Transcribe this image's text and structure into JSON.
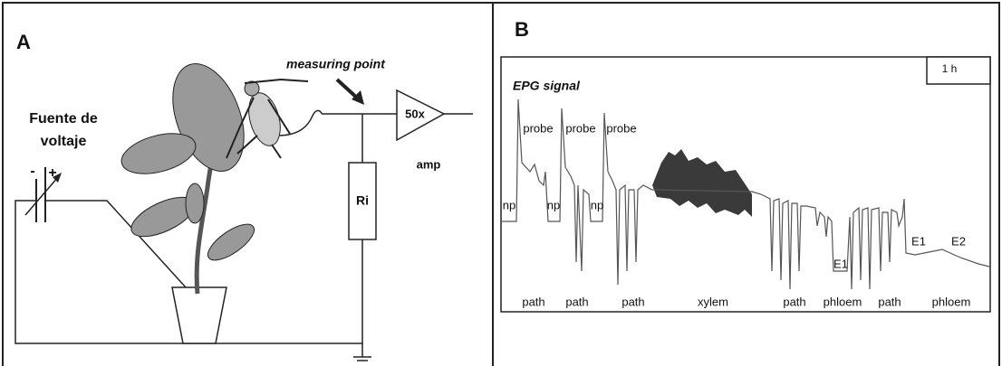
{
  "panel_a": {
    "label": "A",
    "measuring_point": "measuring point",
    "voltage_source": [
      "Fuente de",
      "voltaje"
    ],
    "minus": "-",
    "plus": "+",
    "amplifier_gain": "50x",
    "amplifier": "amp",
    "resistor": "Ri"
  },
  "panel_b": {
    "label": "B",
    "signal_title": "EPG signal",
    "scale": "1 h",
    "annotations": [
      {
        "text": "probe"
      },
      {
        "text": "probe"
      },
      {
        "text": "probe"
      },
      {
        "text": "np"
      },
      {
        "text": "np"
      },
      {
        "text": "np"
      },
      {
        "text": "path"
      },
      {
        "text": "path"
      },
      {
        "text": "path"
      },
      {
        "text": "xylem"
      },
      {
        "text": "path"
      },
      {
        "text": "phloem"
      },
      {
        "text": "path"
      },
      {
        "text": "phloem"
      },
      {
        "text": "E1"
      },
      {
        "text": "E1"
      },
      {
        "text": "E2"
      }
    ]
  }
}
